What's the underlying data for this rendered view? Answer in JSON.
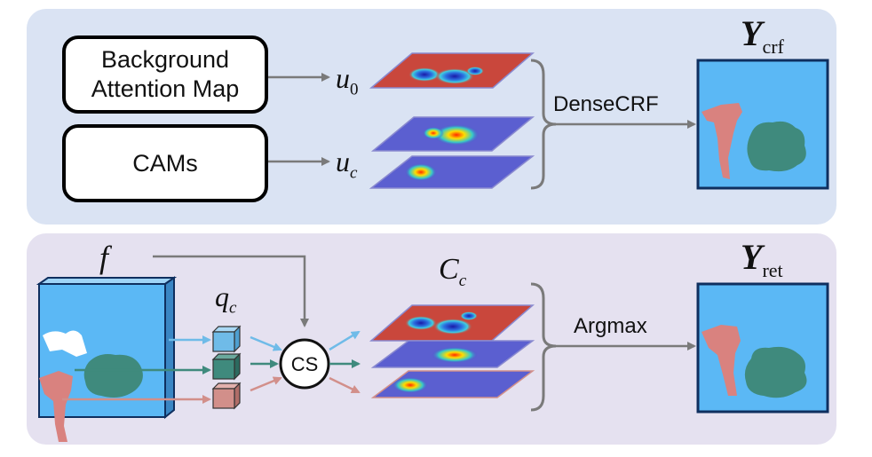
{
  "top": {
    "box_background_line1": "Background",
    "box_background_line2": "Attention Map",
    "box_cams": "CAMs",
    "u0_base": "u",
    "u0_sub": "0",
    "uc_base": "u",
    "uc_sub": "c",
    "operation": "DenseCRF",
    "output_base": "Y",
    "output_sub": "crf"
  },
  "bottom": {
    "feature": "f",
    "queries_base": "q",
    "queries_sub": "c",
    "cs": "CS",
    "scores_base": "C",
    "scores_sub": "c",
    "operation": "Argmax",
    "output_base": "Y",
    "output_sub": "ret"
  },
  "colors": {
    "top_panel": "#dae3f3",
    "bottom_panel": "#e5e1f0",
    "segmentation_bg": "#5bb8f5",
    "person_class": "#d9827f",
    "bird_class": "#3f8a7d",
    "query_blue": "#6fbbe8",
    "query_green": "#3f8a7d",
    "query_pink": "#d28f8a",
    "arrow_gray": "#7a7a7a"
  }
}
